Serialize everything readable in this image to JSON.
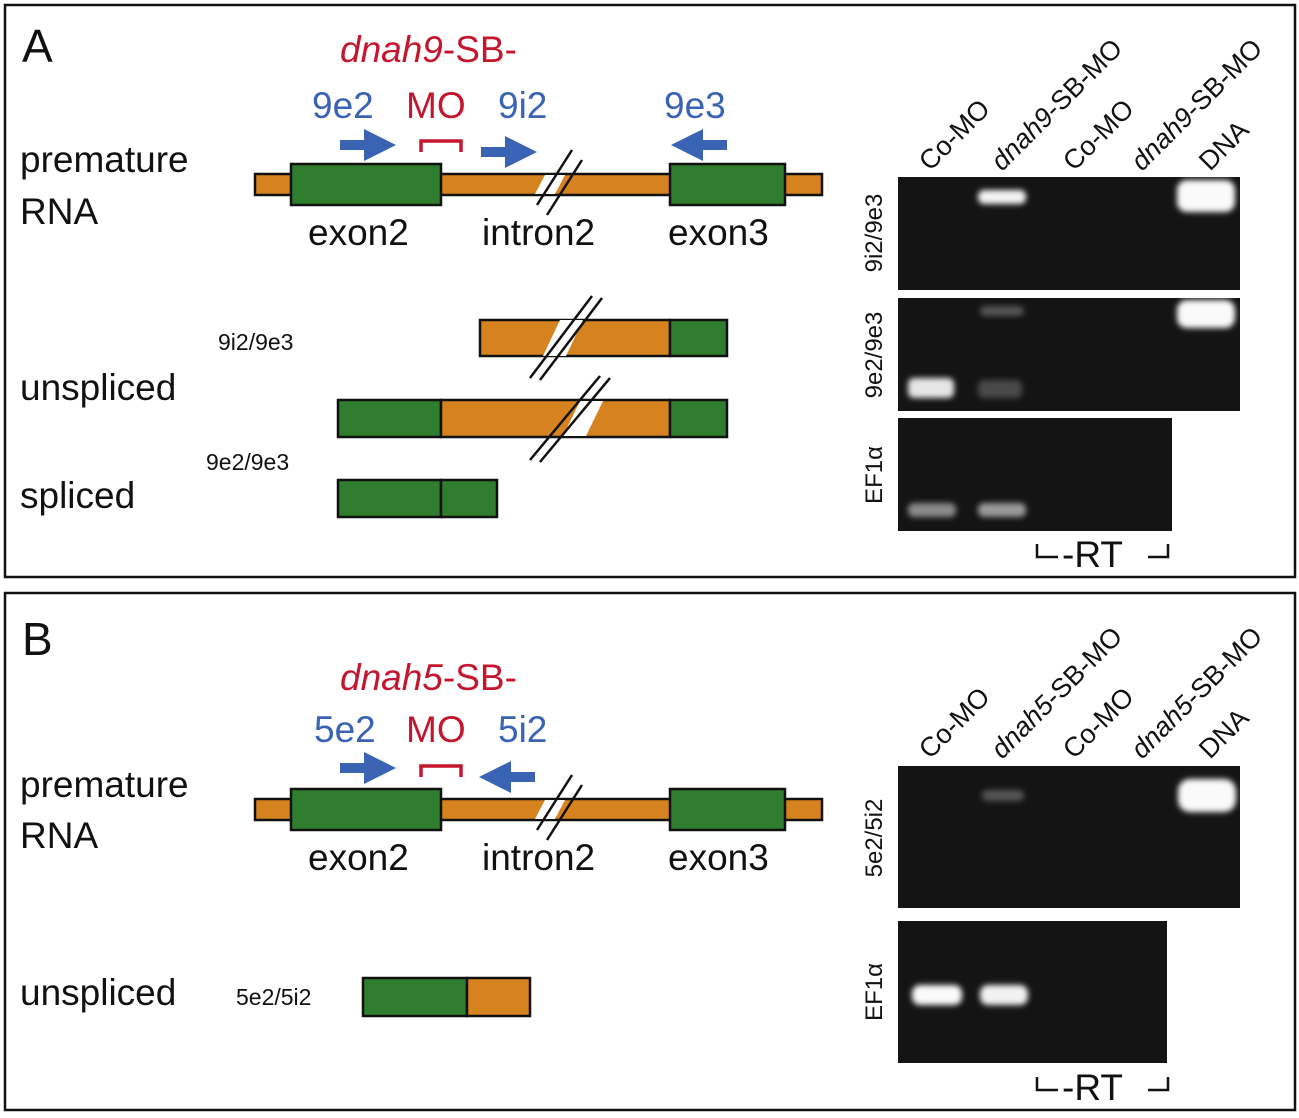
{
  "colors": {
    "exon": "#2f7d2f",
    "intron": "#d6831f",
    "primer": "#3a63b4",
    "morpholino": "#c4162e",
    "gel": "#141414"
  },
  "panelA": {
    "letter": "A",
    "mo_gene": "dnah9",
    "mo_suffix": "-SB-",
    "mo_label": "MO",
    "primers": [
      "9e2",
      "9i2",
      "9e3"
    ],
    "premature": "premature",
    "rna": "RNA",
    "exon2": "exon2",
    "intron2": "intron2",
    "exon3": "exon3",
    "unspliced": "unspliced",
    "spliced": "spliced",
    "product1": "9i2/9e3",
    "product2": "9e2/9e3",
    "lanes": [
      {
        "pre": "",
        "label": "Co-MO"
      },
      {
        "pre": "dnah9",
        "label": "-SB-MO"
      },
      {
        "pre": "",
        "label": "Co-MO"
      },
      {
        "pre": "dnah9",
        "label": "-SB-MO"
      },
      {
        "pre": "",
        "label": "DNA"
      }
    ],
    "rows": [
      "9i2/9e3",
      "9e2/9e3",
      "EF1α"
    ],
    "rt": "-RT"
  },
  "panelB": {
    "letter": "B",
    "mo_gene": "dnah5",
    "mo_suffix": "-SB-",
    "mo_label": "MO",
    "primers": [
      "5e2",
      "5i2"
    ],
    "premature": "premature",
    "rna": "RNA",
    "exon2": "exon2",
    "intron2": "intron2",
    "exon3": "exon3",
    "unspliced": "unspliced",
    "product1": "5e2/5i2",
    "lanes": [
      {
        "pre": "",
        "label": "Co-MO"
      },
      {
        "pre": "dnah5",
        "label": "-SB-MO"
      },
      {
        "pre": "",
        "label": "Co-MO"
      },
      {
        "pre": "dnah5",
        "label": "-SB-MO"
      },
      {
        "pre": "",
        "label": "DNA"
      }
    ],
    "rows": [
      "5e2/5i2",
      "EF1α"
    ],
    "rt": "-RT"
  }
}
